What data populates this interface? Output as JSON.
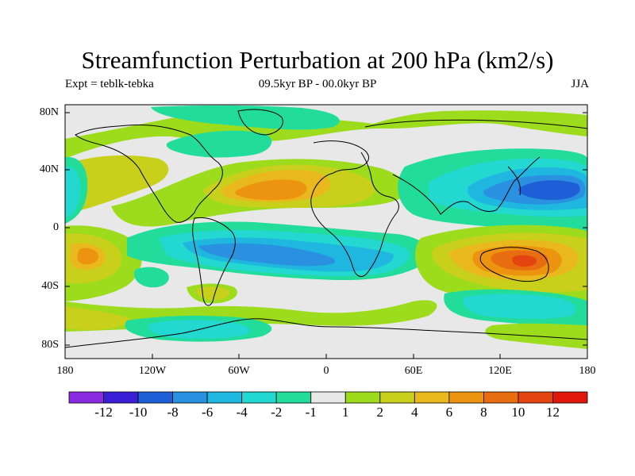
{
  "title": "Streamfunction Perturbation at 200 hPa (km2/s)",
  "subtitle_left": "Expt = teblk-tebka",
  "subtitle_center": "09.5kyr BP - 00.0kyr BP",
  "subtitle_right": "JJA",
  "y_ticks": [
    "80N",
    "40N",
    "0",
    "40S",
    "80S"
  ],
  "x_ticks": [
    "180",
    "120W",
    "60W",
    "0",
    "60E",
    "120E",
    "180"
  ],
  "colorbar": {
    "labels": [
      "-12",
      "-10",
      "-8",
      "-6",
      "-4",
      "-2",
      "-1",
      "1",
      "2",
      "4",
      "6",
      "8",
      "10",
      "12"
    ],
    "colors": [
      "#8a2be2",
      "#3a1fd6",
      "#1e5fd8",
      "#2a90e0",
      "#1fb6e0",
      "#22d8d0",
      "#22dc9c",
      "#e8e8e8",
      "#9cdc1c",
      "#c8d01c",
      "#e8b81c",
      "#ec9410",
      "#e86c10",
      "#e44410",
      "#e0180c"
    ]
  },
  "map_data": {
    "type": "filled-contour-map",
    "projection": "cylindrical-equidistant",
    "lon_range": [
      -180,
      180
    ],
    "lat_range": [
      -90,
      90
    ],
    "features": [
      {
        "name": "positive-high-north-africa",
        "lon": -30,
        "lat": 28,
        "value": 7
      },
      {
        "name": "positive-high-australia",
        "lon": 135,
        "lat": -25,
        "value": 9
      },
      {
        "name": "positive-high-south-pacific",
        "lon": -158,
        "lat": -20,
        "value": 6
      },
      {
        "name": "negative-low-north-pacific",
        "lon": 145,
        "lat": 28,
        "value": -9
      },
      {
        "name": "negative-low-south-atlantic",
        "lon": -60,
        "lat": -20,
        "value": -6
      },
      {
        "name": "negative-low-south-indian",
        "lon": 110,
        "lat": -48,
        "value": -4
      }
    ]
  }
}
